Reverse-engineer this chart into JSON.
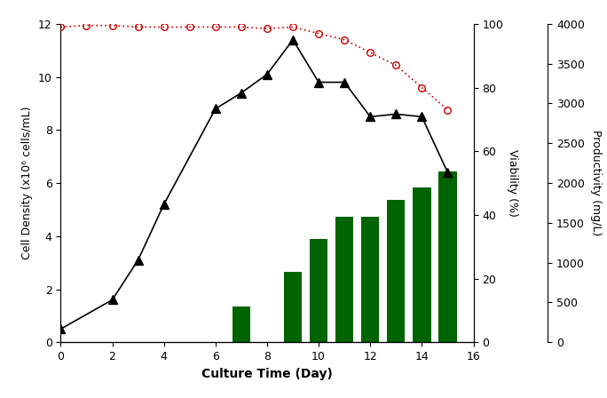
{
  "viable_cells_x": [
    0,
    2,
    3,
    4,
    6,
    7,
    8,
    9,
    10,
    11,
    12,
    13,
    14,
    15
  ],
  "viable_cells_y": [
    0.5,
    1.6,
    3.1,
    5.2,
    8.8,
    9.4,
    10.1,
    11.4,
    9.8,
    9.8,
    8.5,
    8.6,
    8.5,
    6.4
  ],
  "viability_x": [
    0,
    1,
    2,
    3,
    4,
    5,
    6,
    7,
    8,
    9,
    10,
    11,
    12,
    13,
    14,
    15
  ],
  "viability_y": [
    99.0,
    99.5,
    99.5,
    99.0,
    99.0,
    99.0,
    99.0,
    99.0,
    98.5,
    99.0,
    97.0,
    95.0,
    91.0,
    87.0,
    80.0,
    73.0
  ],
  "bar_x": [
    7,
    9,
    10,
    11,
    12,
    13,
    14,
    15
  ],
  "bar_y_prod": [
    450,
    880,
    1300,
    1580,
    1580,
    1790,
    1950,
    2150
  ],
  "cell_ylim": [
    0,
    12
  ],
  "viability_ylim": [
    0,
    100
  ],
  "prod_ylim": [
    0,
    4000
  ],
  "xlim": [
    0,
    16
  ],
  "xticks": [
    0,
    2,
    4,
    6,
    8,
    10,
    12,
    14,
    16
  ],
  "cell_yticks": [
    0,
    2,
    4,
    6,
    8,
    10,
    12
  ],
  "viab_yticks": [
    0,
    20,
    40,
    60,
    80,
    100
  ],
  "prod_yticks": [
    0,
    500,
    1000,
    1500,
    2000,
    2500,
    3000,
    3500,
    4000
  ],
  "xlabel": "Culture Time (Day)",
  "ylabel_left": "Cell Density (x10⁶ cells/mL)",
  "ylabel_viab": "Viability (%)",
  "ylabel_prod": "Productivity (mg/L)",
  "bar_color": "#006400",
  "viability_color": "#cc0000",
  "viable_cells_color": "#000000",
  "bar_width": 0.7,
  "figsize": [
    6.84,
    4.48
  ],
  "dpi": 100
}
